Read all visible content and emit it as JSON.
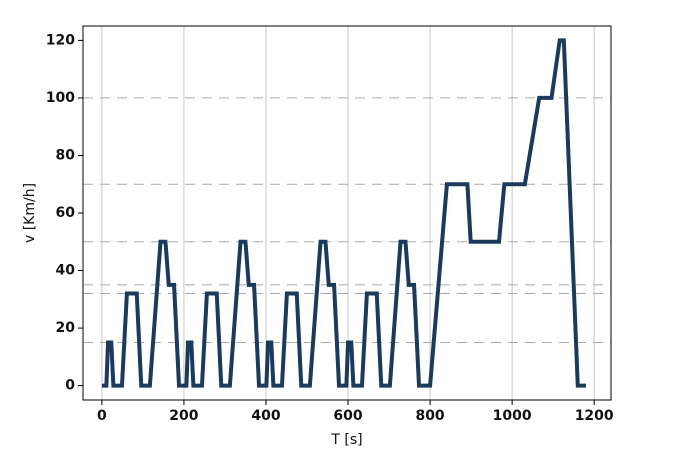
{
  "chart_data": {
    "type": "line",
    "xlabel": "T [s]",
    "ylabel": "v [Km/h]",
    "x": [
      0,
      11,
      15,
      23,
      28,
      49,
      61,
      85,
      96,
      117,
      143,
      155,
      163,
      176,
      188,
      195,
      206,
      210,
      218,
      223,
      244,
      256,
      280,
      291,
      312,
      338,
      350,
      358,
      371,
      383,
      390,
      401,
      405,
      413,
      418,
      439,
      451,
      475,
      486,
      507,
      533,
      545,
      553,
      566,
      578,
      585,
      596,
      600,
      608,
      613,
      634,
      646,
      670,
      681,
      702,
      728,
      740,
      748,
      761,
      773,
      780,
      800,
      841,
      891,
      899,
      968,
      981,
      1031,
      1066,
      1096,
      1116,
      1126,
      1160,
      1180
    ],
    "series": [
      {
        "color": "#1b3a5c",
        "values": [
          0,
          0,
          15,
          15,
          0,
          0,
          32,
          32,
          0,
          0,
          50,
          50,
          35,
          35,
          0,
          0,
          0,
          15,
          15,
          0,
          0,
          32,
          32,
          0,
          0,
          50,
          50,
          35,
          35,
          0,
          0,
          0,
          15,
          15,
          0,
          0,
          32,
          32,
          0,
          0,
          50,
          50,
          35,
          35,
          0,
          0,
          0,
          15,
          15,
          0,
          0,
          32,
          32,
          0,
          0,
          50,
          50,
          35,
          35,
          0,
          0,
          0,
          70,
          70,
          50,
          50,
          70,
          70,
          100,
          100,
          120,
          120,
          0,
          0
        ]
      }
    ],
    "xlim": [
      -46,
      1241
    ],
    "ylim": [
      -5,
      125
    ],
    "xticks": [
      0,
      200,
      400,
      600,
      800,
      1000,
      1200
    ],
    "yticks": [
      0,
      20,
      40,
      60,
      80,
      100,
      120
    ],
    "xgrid": true,
    "hlines": [
      15,
      32,
      35,
      50,
      70,
      100
    ]
  }
}
